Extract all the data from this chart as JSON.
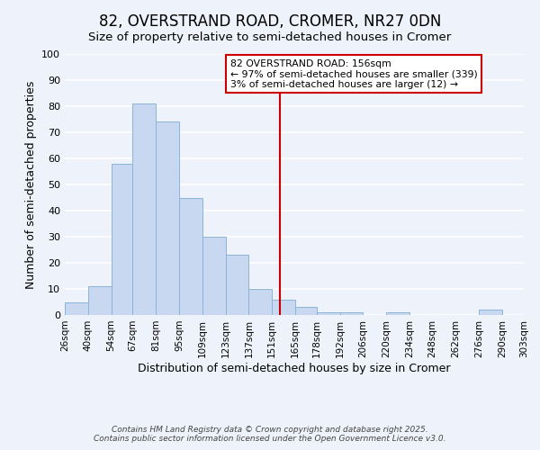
{
  "title": "82, OVERSTRAND ROAD, CROMER, NR27 0DN",
  "subtitle": "Size of property relative to semi-detached houses in Cromer",
  "xlabel": "Distribution of semi-detached houses by size in Cromer",
  "ylabel": "Number of semi-detached properties",
  "bar_edges": [
    26,
    40,
    54,
    67,
    81,
    95,
    109,
    123,
    137,
    151,
    165,
    178,
    192,
    206,
    220,
    234,
    248,
    262,
    276,
    290,
    303
  ],
  "bar_heights": [
    5,
    11,
    58,
    81,
    74,
    45,
    30,
    23,
    10,
    6,
    3,
    1,
    1,
    0,
    1,
    0,
    0,
    0,
    2,
    0
  ],
  "bar_color": "#c8d8f0",
  "bar_edge_color": "#8ab4d8",
  "vline_x": 156,
  "vline_color": "#cc0000",
  "ylim": [
    0,
    100
  ],
  "xlim_left": 26,
  "xlim_right": 303,
  "annotation_title": "82 OVERSTRAND ROAD: 156sqm",
  "annotation_line1": "← 97% of semi-detached houses are smaller (339)",
  "annotation_line2": "3% of semi-detached houses are larger (12) →",
  "annotation_box_color": "#ffffff",
  "annotation_box_edge": "#cc0000",
  "footer_line1": "Contains HM Land Registry data © Crown copyright and database right 2025.",
  "footer_line2": "Contains public sector information licensed under the Open Government Licence v3.0.",
  "background_color": "#eef2fa",
  "grid_color": "#ffffff",
  "title_fontsize": 12,
  "subtitle_fontsize": 9.5,
  "axis_label_fontsize": 9,
  "tick_label_fontsize": 7.5,
  "footer_fontsize": 6.5
}
